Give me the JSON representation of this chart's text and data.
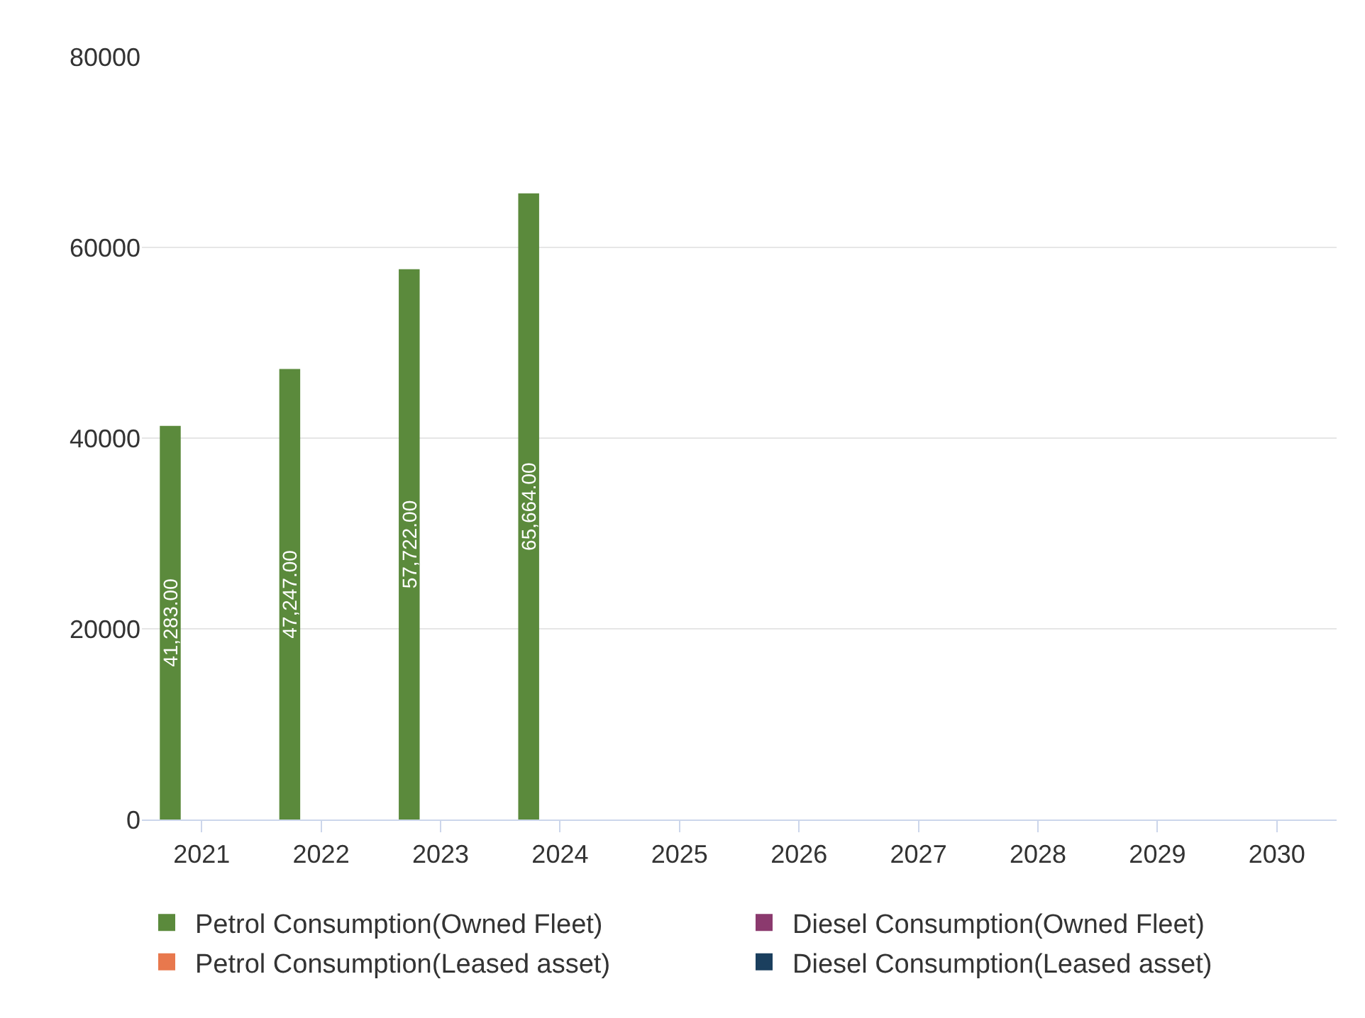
{
  "chart_data": {
    "type": "bar",
    "categories": [
      "2021",
      "2022",
      "2023",
      "2024",
      "2025",
      "2026",
      "2027",
      "2028",
      "2029",
      "2030"
    ],
    "series": [
      {
        "name": "Petrol Consumption(Owned Fleet)",
        "color": "#5b8a3c",
        "values": [
          41283,
          47247,
          57722,
          65664,
          null,
          null,
          null,
          null,
          null,
          null
        ],
        "value_labels": [
          "41,283.00",
          "47,247.00",
          "57,722.00",
          "65,664.00",
          null,
          null,
          null,
          null,
          null,
          null
        ]
      },
      {
        "name": "Diesel Consumption(Owned Fleet)",
        "color": "#8b3a6e",
        "values": [
          null,
          null,
          null,
          null,
          null,
          null,
          null,
          null,
          null,
          null
        ]
      },
      {
        "name": "Petrol Consumption(Leased asset)",
        "color": "#e8784d",
        "values": [
          null,
          null,
          null,
          null,
          null,
          null,
          null,
          null,
          null,
          null
        ]
      },
      {
        "name": "Diesel Consumption(Leased asset)",
        "color": "#1b3f5e",
        "values": [
          null,
          null,
          null,
          null,
          null,
          null,
          null,
          null,
          null,
          null
        ]
      }
    ],
    "ylim": [
      0,
      80000
    ],
    "yticks": [
      0,
      20000,
      40000,
      60000,
      80000
    ],
    "grid": "y",
    "legend": "bottom"
  }
}
